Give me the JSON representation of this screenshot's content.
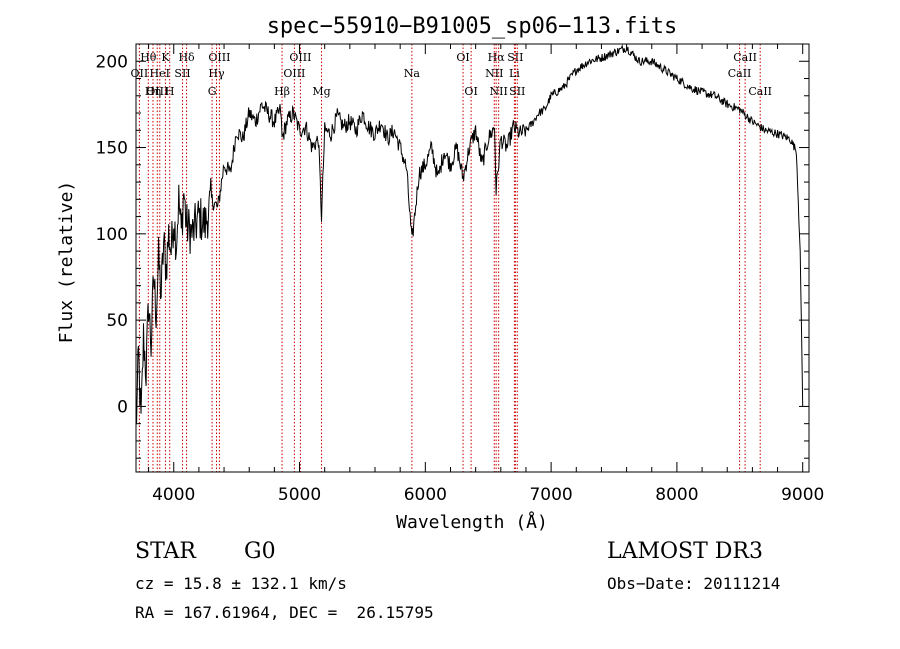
{
  "chart_data": {
    "type": "line",
    "title": "spec−55910−B91005_sp06−113.fits",
    "xlabel": "Wavelength (Å)",
    "ylabel": "Flux (relative)",
    "xlim": [
      3700,
      9050
    ],
    "ylim": [
      -38,
      210
    ],
    "xticks": [
      4000,
      5000,
      6000,
      7000,
      8000,
      9000
    ],
    "yticks": [
      0,
      50,
      100,
      150,
      200
    ],
    "series": [
      {
        "name": "flux",
        "x": [
          3700,
          3720,
          3740,
          3760,
          3780,
          3800,
          3820,
          3840,
          3860,
          3880,
          3900,
          3920,
          3940,
          3960,
          3980,
          4000,
          4020,
          4040,
          4060,
          4080,
          4100,
          4150,
          4200,
          4250,
          4300,
          4350,
          4400,
          4450,
          4500,
          4550,
          4600,
          4650,
          4700,
          4750,
          4800,
          4850,
          4861,
          4900,
          4950,
          5000,
          5050,
          5100,
          5150,
          5175,
          5200,
          5250,
          5300,
          5350,
          5400,
          5450,
          5500,
          5550,
          5600,
          5650,
          5700,
          5750,
          5800,
          5850,
          5893,
          5950,
          6000,
          6050,
          6100,
          6150,
          6200,
          6250,
          6300,
          6350,
          6400,
          6450,
          6500,
          6550,
          6563,
          6600,
          6650,
          6700,
          6750,
          6800,
          6850,
          6900,
          6950,
          7000,
          7100,
          7200,
          7300,
          7400,
          7500,
          7600,
          7700,
          7800,
          7900,
          8000,
          8100,
          8200,
          8300,
          8400,
          8500,
          8600,
          8700,
          8800,
          8900,
          8950,
          8980,
          9000
        ],
        "values": [
          -15,
          30,
          -10,
          40,
          20,
          60,
          35,
          75,
          55,
          85,
          65,
          95,
          80,
          100,
          90,
          110,
          95,
          120,
          100,
          125,
          105,
          100,
          110,
          105,
          120,
          115,
          140,
          135,
          160,
          155,
          170,
          165,
          175,
          170,
          165,
          172,
          155,
          165,
          170,
          160,
          162,
          150,
          155,
          110,
          160,
          158,
          168,
          162,
          165,
          160,
          170,
          162,
          158,
          165,
          155,
          160,
          150,
          138,
          95,
          135,
          140,
          150,
          132,
          148,
          140,
          150,
          132,
          150,
          160,
          140,
          155,
          162,
          125,
          155,
          150,
          162,
          158,
          160,
          164,
          170,
          172,
          180,
          185,
          195,
          200,
          202,
          205,
          208,
          200,
          200,
          195,
          190,
          185,
          182,
          180,
          175,
          172,
          165,
          160,
          158,
          155,
          148,
          90,
          0
        ]
      }
    ],
    "lines": [
      {
        "label": "Hθ",
        "wl": 3798,
        "row": 1
      },
      {
        "label": "OII",
        "wl": 3727,
        "row": 2
      },
      {
        "label": "OIII",
        "wl": 3869,
        "row": 3
      },
      {
        "label": "K",
        "wl": 3934,
        "row": 1
      },
      {
        "label": "HeI",
        "wl": 3889,
        "row": 2
      },
      {
        "label": "Hη",
        "wl": 3835,
        "row": 3
      },
      {
        "label": "SII",
        "wl": 4070,
        "row": 2
      },
      {
        "label": "H",
        "wl": 3968,
        "row": 3
      },
      {
        "label": "Hδ",
        "wl": 4102,
        "row": 1
      },
      {
        "label": "OIII",
        "wl": 4363,
        "row": 1
      },
      {
        "label": "Hγ",
        "wl": 4340,
        "row": 2
      },
      {
        "label": "G",
        "wl": 4305,
        "row": 3
      },
      {
        "label": "Hβ",
        "wl": 4861,
        "row": 3
      },
      {
        "label": "OIII",
        "wl": 5007,
        "row": 1
      },
      {
        "label": "OIII",
        "wl": 4959,
        "row": 2
      },
      {
        "label": "Mg",
        "wl": 5175,
        "row": 3
      },
      {
        "label": "Na",
        "wl": 5893,
        "row": 2
      },
      {
        "label": "OI",
        "wl": 6300,
        "row": 1
      },
      {
        "label": "OI",
        "wl": 6364,
        "row": 3
      },
      {
        "label": "Hα",
        "wl": 6563,
        "row": 1
      },
      {
        "label": "NII",
        "wl": 6548,
        "row": 2
      },
      {
        "label": "NII",
        "wl": 6583,
        "row": 3
      },
      {
        "label": "SII",
        "wl": 6716,
        "row": 1
      },
      {
        "label": "Li",
        "wl": 6708,
        "row": 2
      },
      {
        "label": "SII",
        "wl": 6731,
        "row": 3
      },
      {
        "label": "CaII",
        "wl": 8542,
        "row": 1
      },
      {
        "label": "CaII",
        "wl": 8498,
        "row": 2
      },
      {
        "label": "CaII",
        "wl": 8662,
        "row": 3
      }
    ]
  },
  "info": {
    "object_class": "STAR",
    "subclass": "G0",
    "survey": "LAMOST DR3",
    "redshift": "cz = 15.8 ± 132.1 km/s",
    "obs_date": "Obs−Date: 20111214",
    "coords": "RA = 167.61964, DEC =  26.15795"
  }
}
